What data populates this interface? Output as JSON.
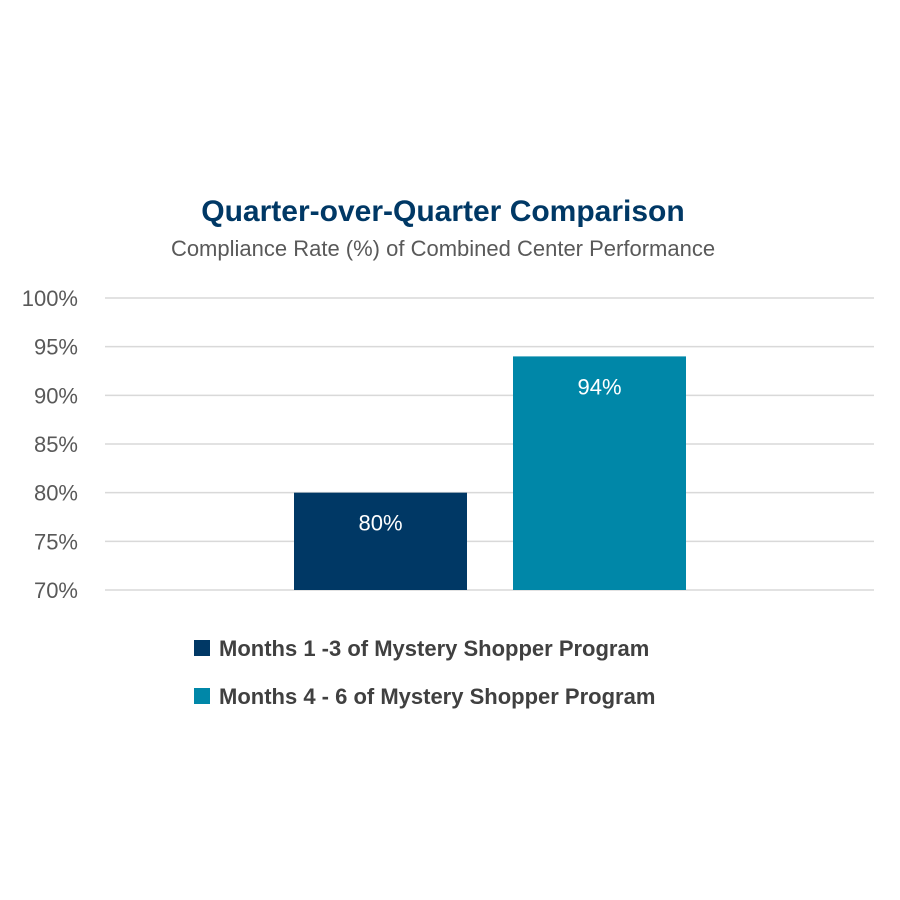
{
  "chart_data": {
    "type": "bar",
    "title": "Quarter-over-Quarter Comparison",
    "subtitle": "Compliance Rate (%) of Combined Center Performance",
    "ylim": [
      70,
      100
    ],
    "y_ticks": [
      70,
      75,
      80,
      85,
      90,
      95,
      100
    ],
    "y_tick_labels": [
      "70%",
      "75%",
      "80%",
      "85%",
      "90%",
      "95%",
      "100%"
    ],
    "grid": true,
    "legend_position": "bottom",
    "series": [
      {
        "name": "Months 1 -3 of Mystery Shopper Program",
        "values": [
          80
        ],
        "data_labels": [
          "80%"
        ],
        "color": "#003865"
      },
      {
        "name": "Months 4 - 6 of Mystery Shopper Program",
        "values": [
          94
        ],
        "data_labels": [
          "94%"
        ],
        "color": "#0087A8"
      }
    ]
  },
  "colors": {
    "title": "#003865",
    "subtitle": "#595959",
    "tick_label": "#595959",
    "gridline": "#d9d9d9",
    "data_label": "#ffffff",
    "legend_label": "#404040",
    "background": "#ffffff"
  }
}
